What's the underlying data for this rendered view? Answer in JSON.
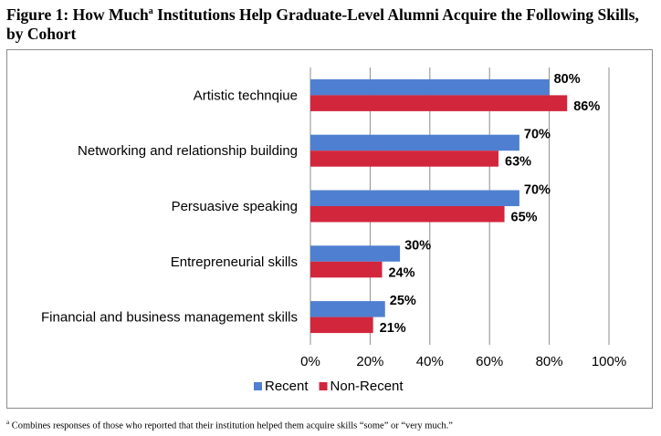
{
  "title": {
    "before_sup": "Figure 1: How Much",
    "sup": "a",
    "after_sup": " Institutions Help Graduate-Level Alumni Acquire the Following Skills, by Cohort"
  },
  "footnote": {
    "marker": "a",
    "text": " Combines responses of those who reported that their institution helped them acquire skills “some” or “very much.”"
  },
  "chart_data": {
    "type": "bar",
    "orientation": "horizontal",
    "categories": [
      "Artistic technqiue",
      "Networking and relationship building",
      "Persuasive speaking",
      "Entrepreneurial skills",
      "Financial and business management skills"
    ],
    "series": [
      {
        "name": "Recent",
        "color": "#4f7fd0",
        "values": [
          80,
          70,
          70,
          30,
          25
        ]
      },
      {
        "name": "Non-Recent",
        "color": "#d2263c",
        "values": [
          86,
          63,
          65,
          24,
          21
        ]
      }
    ],
    "xlim": [
      0,
      100
    ],
    "xticks": [
      0,
      20,
      40,
      60,
      80,
      100
    ],
    "tick_suffix": "%",
    "grid": true,
    "legend_position": "bottom-center"
  }
}
